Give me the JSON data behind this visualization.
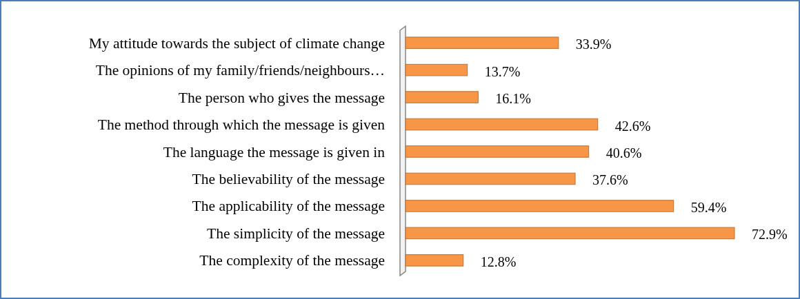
{
  "chart_data": {
    "type": "bar",
    "orientation": "horizontal",
    "categories": [
      "My attitude towards the subject of climate change",
      "The opinions of my family/friends/neighbours…",
      "The person who gives the message",
      "The method through which the message is given",
      "The language the message is given in",
      "The believability of the message",
      "The applicability of the message",
      "The simplicity of the message",
      "The complexity of the message"
    ],
    "values": [
      33.9,
      13.7,
      16.1,
      42.6,
      40.6,
      37.6,
      59.4,
      72.9,
      12.8
    ],
    "value_labels": [
      "33.9%",
      "13.7%",
      "16.1%",
      "42.6%",
      "40.6%",
      "37.6%",
      "59.4%",
      "72.9%",
      "12.8%"
    ],
    "color": "#f79646"
  }
}
